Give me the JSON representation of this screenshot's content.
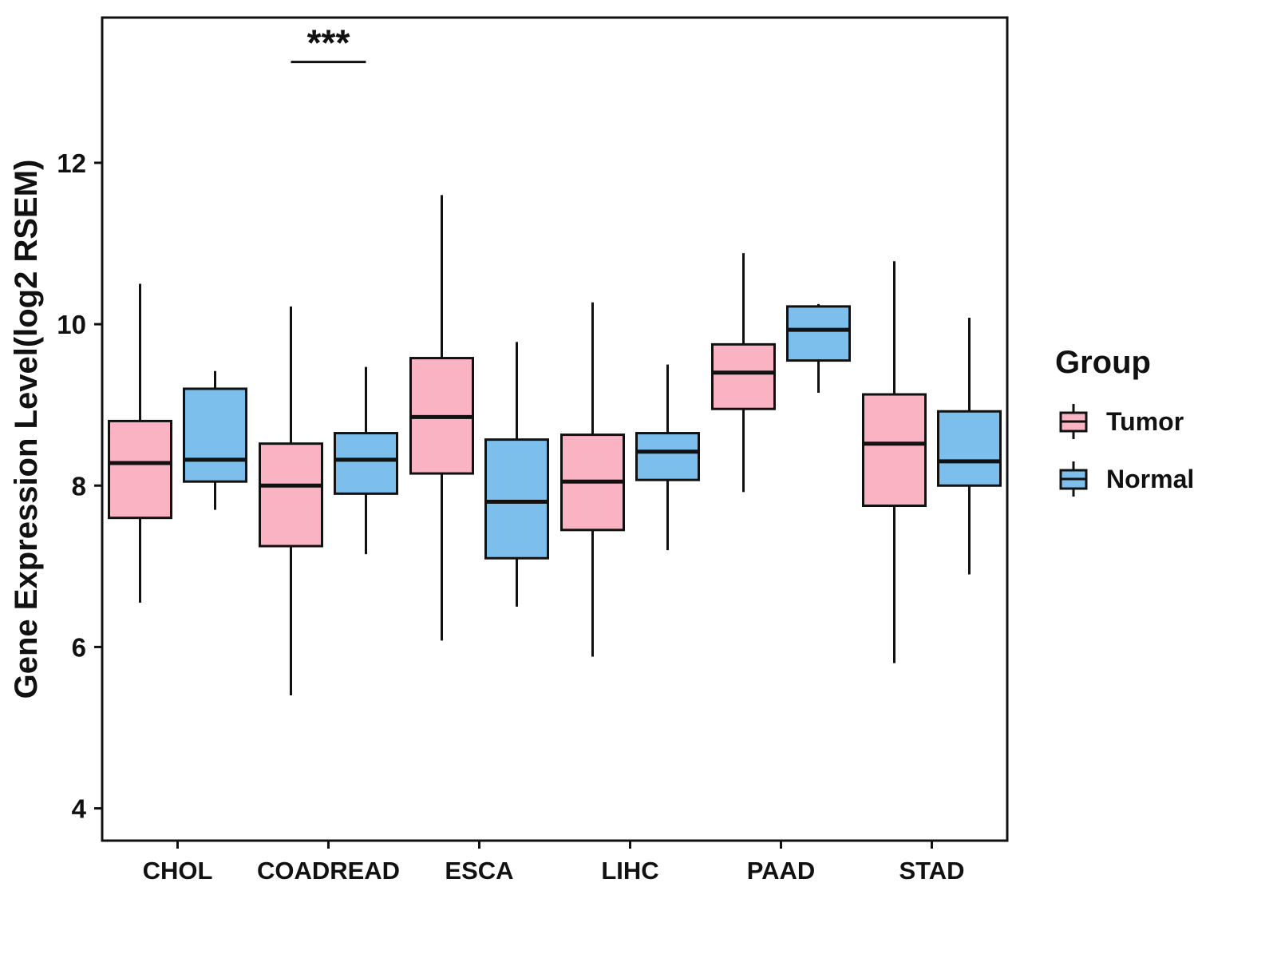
{
  "chart_data": {
    "type": "boxplot",
    "title": "",
    "xlabel": "",
    "ylabel": "Gene Expression Level(log2 RSEM)",
    "ylim": [
      3.6,
      13.8
    ],
    "yticks": [
      4,
      6,
      8,
      10,
      12
    ],
    "grid": false,
    "categories": [
      "CHOL",
      "COADREAD",
      "ESCA",
      "LIHC",
      "PAAD",
      "STAD"
    ],
    "series": [
      {
        "name": "Tumor",
        "color": "#F9B3C2",
        "boxes": [
          {
            "low": 6.55,
            "q1": 7.6,
            "median": 8.28,
            "q3": 8.8,
            "high": 10.5
          },
          {
            "low": 5.4,
            "q1": 7.25,
            "median": 8.0,
            "q3": 8.52,
            "high": 10.22
          },
          {
            "low": 6.08,
            "q1": 8.15,
            "median": 8.85,
            "q3": 9.58,
            "high": 11.6
          },
          {
            "low": 5.88,
            "q1": 7.45,
            "median": 8.05,
            "q3": 8.63,
            "high": 10.27
          },
          {
            "low": 7.92,
            "q1": 8.95,
            "median": 9.4,
            "q3": 9.75,
            "high": 10.88
          },
          {
            "low": 5.8,
            "q1": 7.75,
            "median": 8.52,
            "q3": 9.13,
            "high": 10.78
          }
        ]
      },
      {
        "name": "Normal",
        "color": "#7CBEEC",
        "boxes": [
          {
            "low": 7.7,
            "q1": 8.05,
            "median": 8.32,
            "q3": 9.2,
            "high": 9.42
          },
          {
            "low": 7.15,
            "q1": 7.9,
            "median": 8.32,
            "q3": 8.65,
            "high": 9.47
          },
          {
            "low": 6.5,
            "q1": 7.1,
            "median": 7.8,
            "q3": 8.57,
            "high": 9.78
          },
          {
            "low": 7.2,
            "q1": 8.07,
            "median": 8.42,
            "q3": 8.65,
            "high": 9.5
          },
          {
            "low": 9.15,
            "q1": 9.55,
            "median": 9.93,
            "q3": 10.22,
            "high": 10.25
          },
          {
            "low": 6.9,
            "q1": 8.0,
            "median": 8.3,
            "q3": 8.92,
            "high": 10.08
          }
        ]
      }
    ],
    "legend": {
      "title": "Group",
      "position": "right",
      "entries": [
        "Tumor",
        "Normal"
      ]
    },
    "annotation": {
      "label": "***",
      "category": "COADREAD",
      "line_y": 13.25
    },
    "axis_color": "#111111"
  }
}
